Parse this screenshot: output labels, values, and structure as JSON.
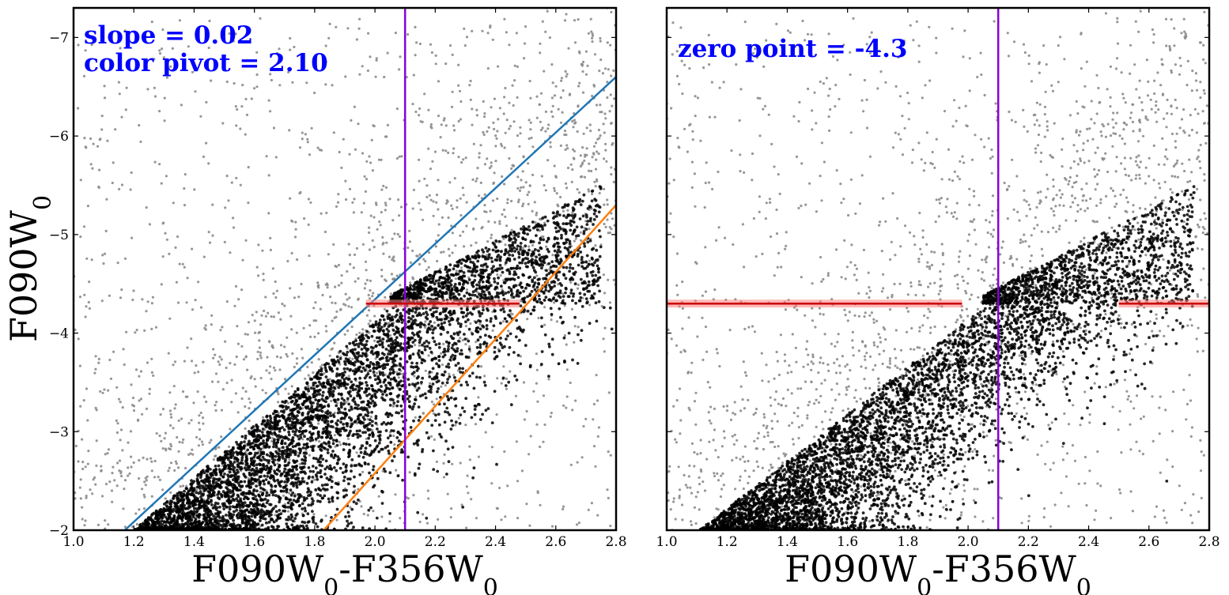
{
  "chart_data": [
    {
      "type": "scatter",
      "panel": "left",
      "xlabel": "F090W0-F356W0",
      "ylabel": "F090W0",
      "xlim": [
        1.0,
        2.8
      ],
      "ylim": [
        -2,
        -7.3
      ],
      "y_inverted": true,
      "xticks": [
        "1.0",
        "1.2",
        "1.4",
        "1.6",
        "1.8",
        "2.0",
        "2.2",
        "2.4",
        "2.6",
        "2.8"
      ],
      "yticks": [
        "−7",
        "−6",
        "−5",
        "−4",
        "−3",
        "−2"
      ],
      "annotations": [
        "slope = 0.02",
        "color pivot = 2.10"
      ],
      "lines": [
        {
          "name": "upper blue edge",
          "color": "#1f77b4",
          "points": [
            [
              1.17,
              -2.0
            ],
            [
              2.8,
              -6.6
            ]
          ]
        },
        {
          "name": "lower orange edge",
          "color": "#ff7f0e",
          "points": [
            [
              1.83,
              -2.0
            ],
            [
              2.8,
              -5.3
            ]
          ]
        },
        {
          "name": "color pivot",
          "color": "#8b00d9",
          "points": [
            [
              2.1,
              -2.0
            ],
            [
              2.1,
              -7.3
            ]
          ]
        },
        {
          "name": "TRGB fit",
          "color": "#cc0000",
          "points": [
            [
              1.97,
              -4.3
            ],
            [
              2.48,
              -4.3
            ]
          ]
        }
      ],
      "series": [
        {
          "name": "all stars",
          "color": "#8c8c8c"
        },
        {
          "name": "selected RGB stars",
          "color": "#000000"
        }
      ]
    },
    {
      "type": "scatter",
      "panel": "right",
      "xlabel": "F090W0-F356W0",
      "xlim": [
        1.0,
        2.8
      ],
      "ylim": [
        -2,
        -7.3
      ],
      "y_inverted": true,
      "xticks": [
        "1.0",
        "1.2",
        "1.4",
        "1.6",
        "1.8",
        "2.0",
        "2.2",
        "2.4",
        "2.6",
        "2.8"
      ],
      "annotations": [
        "zero point = -4.3"
      ],
      "lines": [
        {
          "name": "color pivot",
          "color": "#8b00d9",
          "points": [
            [
              2.1,
              -2.0
            ],
            [
              2.1,
              -7.3
            ]
          ]
        },
        {
          "name": "zero point left",
          "color": "#cc0000",
          "points": [
            [
              1.0,
              -4.3
            ],
            [
              1.98,
              -4.3
            ]
          ]
        },
        {
          "name": "zero point right",
          "color": "#cc0000",
          "points": [
            [
              2.5,
              -4.3
            ],
            [
              2.8,
              -4.3
            ]
          ]
        }
      ],
      "series": [
        {
          "name": "all stars",
          "color": "#8c8c8c"
        },
        {
          "name": "rectified RGB stars",
          "color": "#000000"
        }
      ]
    }
  ]
}
